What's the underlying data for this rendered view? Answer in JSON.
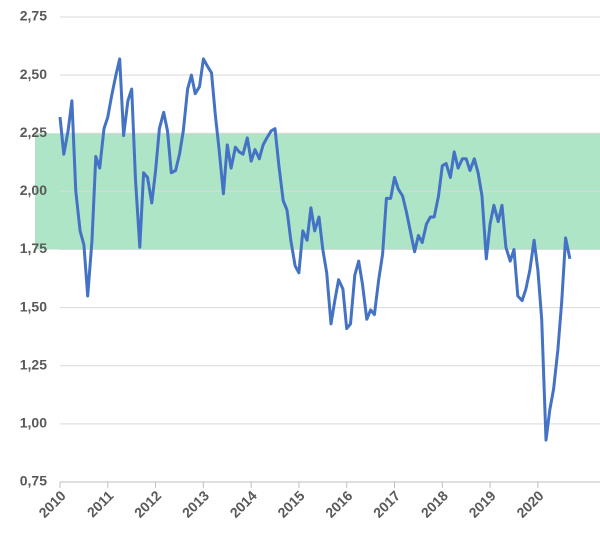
{
  "chart_data": {
    "type": "line",
    "x": [
      2010,
      2010.08,
      2010.17,
      2010.25,
      2010.33,
      2010.42,
      2010.5,
      2010.58,
      2010.67,
      2010.75,
      2010.83,
      2010.92,
      2011,
      2011.08,
      2011.17,
      2011.25,
      2011.33,
      2011.42,
      2011.5,
      2011.58,
      2011.67,
      2011.75,
      2011.83,
      2011.92,
      2012,
      2012.08,
      2012.17,
      2012.25,
      2012.33,
      2012.42,
      2012.5,
      2012.58,
      2012.67,
      2012.75,
      2012.83,
      2012.92,
      2013,
      2013.08,
      2013.17,
      2013.25,
      2013.33,
      2013.42,
      2013.5,
      2013.58,
      2013.67,
      2013.75,
      2013.83,
      2013.92,
      2014,
      2014.08,
      2014.17,
      2014.25,
      2014.33,
      2014.42,
      2014.5,
      2014.58,
      2014.67,
      2014.75,
      2014.83,
      2014.92,
      2015,
      2015.08,
      2015.17,
      2015.25,
      2015.33,
      2015.42,
      2015.5,
      2015.58,
      2015.67,
      2015.75,
      2015.83,
      2015.92,
      2016,
      2016.08,
      2016.17,
      2016.25,
      2016.33,
      2016.42,
      2016.5,
      2016.58,
      2016.67,
      2016.75,
      2016.83,
      2016.92,
      2017,
      2017.08,
      2017.17,
      2017.25,
      2017.33,
      2017.42,
      2017.5,
      2017.58,
      2017.67,
      2017.75,
      2017.83,
      2017.92,
      2018,
      2018.08,
      2018.17,
      2018.25,
      2018.33,
      2018.42,
      2018.5,
      2018.58,
      2018.67,
      2018.75,
      2018.83,
      2018.92,
      2019,
      2019.08,
      2019.17,
      2019.25,
      2019.33,
      2019.42,
      2019.5,
      2019.58,
      2019.67,
      2019.75,
      2019.83,
      2019.92,
      2020,
      2020.08,
      2020.17,
      2020.25,
      2020.33,
      2020.42,
      2020.5,
      2020.58,
      2020.67
    ],
    "series": [
      {
        "color": "#4472c4",
        "values": [
          2.32,
          2.16,
          2.26,
          2.39,
          2.0,
          1.83,
          1.77,
          1.55,
          1.79,
          2.15,
          2.1,
          2.27,
          2.32,
          2.41,
          2.5,
          2.57,
          2.24,
          2.39,
          2.44,
          2.05,
          1.76,
          2.08,
          2.06,
          1.95,
          2.09,
          2.27,
          2.34,
          2.26,
          2.08,
          2.09,
          2.16,
          2.26,
          2.44,
          2.5,
          2.42,
          2.45,
          2.57,
          2.54,
          2.51,
          2.33,
          2.18,
          1.99,
          2.2,
          2.1,
          2.19,
          2.17,
          2.16,
          2.23,
          2.13,
          2.18,
          2.14,
          2.2,
          2.23,
          2.26,
          2.27,
          2.11,
          1.96,
          1.92,
          1.79,
          1.68,
          1.65,
          1.83,
          1.79,
          1.93,
          1.83,
          1.89,
          1.75,
          1.65,
          1.43,
          1.53,
          1.62,
          1.58,
          1.41,
          1.43,
          1.64,
          1.7,
          1.6,
          1.45,
          1.49,
          1.47,
          1.62,
          1.73,
          1.97,
          1.97,
          2.06,
          2.01,
          1.98,
          1.91,
          1.83,
          1.74,
          1.81,
          1.78,
          1.86,
          1.89,
          1.89,
          1.98,
          2.11,
          2.12,
          2.06,
          2.17,
          2.1,
          2.14,
          2.14,
          2.09,
          2.14,
          2.08,
          1.98,
          1.71,
          1.86,
          1.94,
          1.87,
          1.94,
          1.76,
          1.7,
          1.75,
          1.55,
          1.53,
          1.58,
          1.66,
          1.79,
          1.66,
          1.45,
          0.93,
          1.06,
          1.15,
          1.32,
          1.53,
          1.8,
          1.71
        ]
      }
    ],
    "band": [
      1.75,
      2.25
    ],
    "band_color": "#aee5c6",
    "xlim": [
      2010,
      2021.3
    ],
    "xticks": [
      2010,
      2011,
      2012,
      2013,
      2014,
      2015,
      2016,
      2017,
      2018,
      2019,
      2020
    ],
    "ylim": [
      0.75,
      2.75
    ],
    "yticks": [
      {
        "value": 0.75,
        "label": "0,75"
      },
      {
        "value": 1,
        "label": "1,00"
      },
      {
        "value": 1.25,
        "label": "1,25"
      },
      {
        "value": 1.5,
        "label": "1,50"
      },
      {
        "value": 1.75,
        "label": "1,75"
      },
      {
        "value": 2,
        "label": "2,00"
      },
      {
        "value": 2.25,
        "label": "2,25"
      },
      {
        "value": 2.5,
        "label": "2,50"
      },
      {
        "value": 2.75,
        "label": "2,75"
      }
    ],
    "grid": true
  }
}
